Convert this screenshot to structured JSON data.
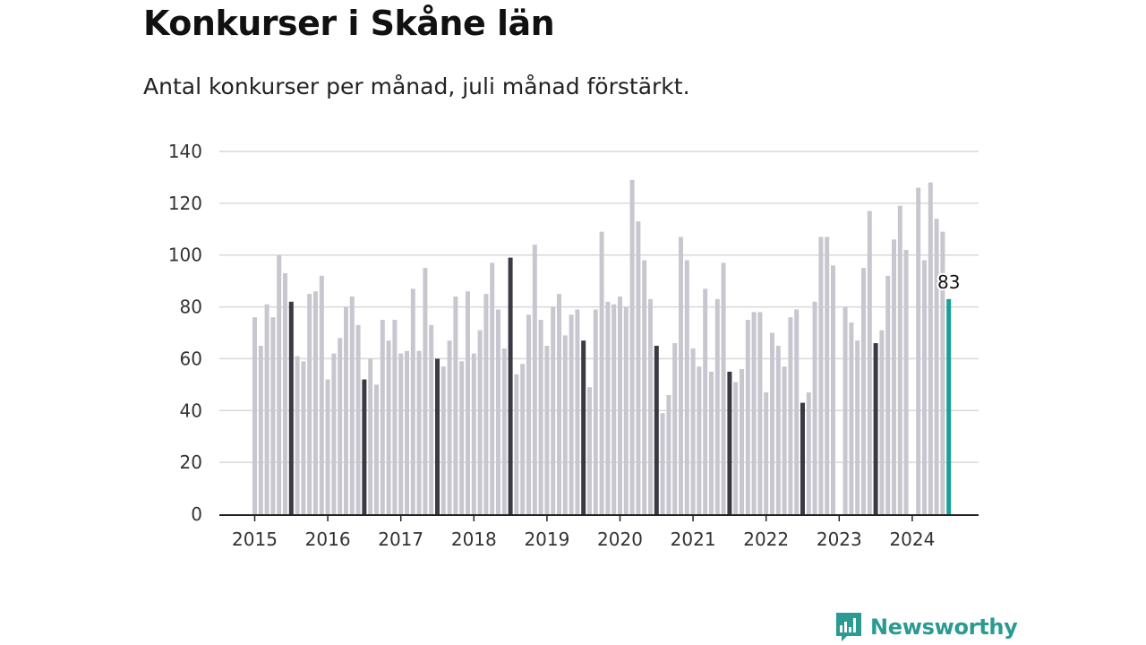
{
  "header": {
    "title": "Konkurser i Skåne län",
    "subtitle": "Antal konkurser per månad, juli månad förstärkt."
  },
  "brand": {
    "name": "Newsworthy"
  },
  "colors": {
    "bar": "#c8c7d0",
    "july": "#3a3944",
    "latest": "#1a9e96",
    "grid": "#d9d9d9",
    "axis": "#222222",
    "brand": "#2a9a93"
  },
  "chart_data": {
    "type": "bar",
    "title": "Konkurser i Skåne län",
    "subtitle": "Antal konkurser per månad, juli månad förstärkt.",
    "xlabel": "",
    "ylabel": "",
    "ylim": [
      0,
      140
    ],
    "yticks": [
      0,
      20,
      40,
      60,
      80,
      100,
      120,
      140
    ],
    "grid": true,
    "x_tick_labels": [
      "2015",
      "2016",
      "2017",
      "2018",
      "2019",
      "2020",
      "2021",
      "2022",
      "2023",
      "2024"
    ],
    "start": "2015-01",
    "highlight": "July of each year (dark bars); latest month (teal)",
    "latest_value_label": "83",
    "values": [
      76,
      65,
      81,
      76,
      100,
      93,
      82,
      61,
      59,
      85,
      86,
      92,
      52,
      62,
      68,
      80,
      84,
      73,
      52,
      60,
      50,
      75,
      67,
      75,
      62,
      63,
      87,
      63,
      95,
      73,
      60,
      57,
      67,
      84,
      59,
      86,
      62,
      71,
      85,
      97,
      79,
      64,
      99,
      54,
      58,
      77,
      104,
      75,
      65,
      80,
      85,
      69,
      77,
      79,
      67,
      49,
      79,
      109,
      82,
      81,
      84,
      80,
      129,
      113,
      98,
      83,
      65,
      39,
      46,
      66,
      107,
      98,
      64,
      57,
      87,
      55,
      83,
      97,
      55,
      51,
      56,
      75,
      78,
      78,
      47,
      70,
      65,
      57,
      76,
      79,
      43,
      47,
      82,
      107,
      107,
      96,
      null,
      80,
      74,
      67,
      95,
      117,
      66,
      71,
      92,
      106,
      119,
      102,
      null,
      126,
      98,
      128,
      114,
      109,
      83
    ]
  }
}
